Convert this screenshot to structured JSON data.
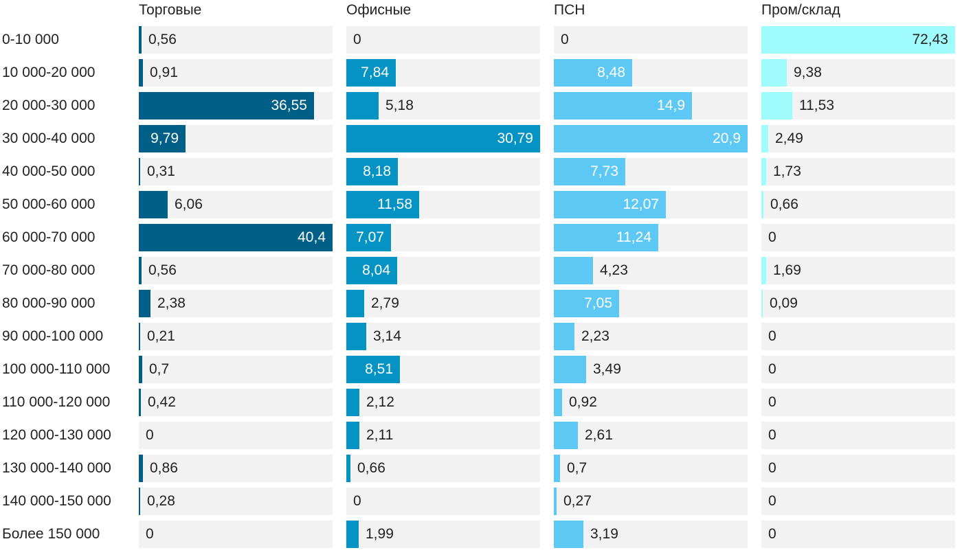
{
  "chart_data": {
    "type": "bar",
    "orientation": "horizontal",
    "layout": "small-multiples",
    "categories": [
      "0-10 000",
      "10 000-20 000",
      "20 000-30 000",
      "30 000-40 000",
      "40 000-50 000",
      "50 000-60 000",
      "60 000-70 000",
      "70 000-80 000",
      "80 000-90 000",
      "90 000-100 000",
      "100 000-110 000",
      "110 000-120 000",
      "120 000-130 000",
      "130 000-140 000",
      "140 000-150 000",
      "Более 150 000"
    ],
    "series": [
      {
        "name": "Торговые",
        "color": "#005f87",
        "values": [
          0.56,
          0.91,
          36.55,
          9.79,
          0.31,
          6.06,
          40.4,
          0.56,
          2.38,
          0.21,
          0.7,
          0.42,
          0,
          0.86,
          0.28,
          0
        ],
        "labels": [
          "0,56",
          "0,91",
          "36,55",
          "9,79",
          "0,31",
          "6,06",
          "40,4",
          "0,56",
          "2,38",
          "0,21",
          "0,7",
          "0,42",
          "0",
          "0,86",
          "0,28",
          "0"
        ]
      },
      {
        "name": "Офисные",
        "color": "#0593c4",
        "values": [
          0,
          7.84,
          5.18,
          30.79,
          8.18,
          11.58,
          7.07,
          8.04,
          2.79,
          3.14,
          8.51,
          2.12,
          2.11,
          0.66,
          0,
          1.99
        ],
        "labels": [
          "0",
          "7,84",
          "5,18",
          "30,79",
          "8,18",
          "11,58",
          "7,07",
          "8,04",
          "2,79",
          "3,14",
          "8,51",
          "2,12",
          "2,11",
          "0,66",
          "0",
          "1,99"
        ]
      },
      {
        "name": "ПСН",
        "color": "#5ec8f4",
        "values": [
          0,
          8.48,
          14.9,
          20.9,
          7.73,
          12.07,
          11.24,
          4.23,
          7.05,
          2.23,
          3.49,
          0.92,
          2.61,
          0.7,
          0.27,
          3.19
        ],
        "labels": [
          "0",
          "8,48",
          "14,9",
          "20,9",
          "7,73",
          "12,07",
          "11,24",
          "4,23",
          "7,05",
          "2,23",
          "3,49",
          "0,92",
          "2,61",
          "0,7",
          "0,27",
          "3,19"
        ]
      },
      {
        "name": "Пром/склад",
        "color": "#a0fcfc",
        "values": [
          72.43,
          9.38,
          11.53,
          2.49,
          1.73,
          0.66,
          0,
          1.69,
          0.09,
          0,
          0,
          0,
          0,
          0,
          0,
          0
        ],
        "labels": [
          "72,43",
          "9,38",
          "11,53",
          "2,49",
          "1,73",
          "0,66",
          "0",
          "1,69",
          "0,09",
          "0",
          "0",
          "0",
          "0",
          "0",
          "0",
          "0"
        ]
      }
    ],
    "title": "",
    "xlabel": "",
    "ylabel": "",
    "grid": false,
    "legend": "none"
  }
}
